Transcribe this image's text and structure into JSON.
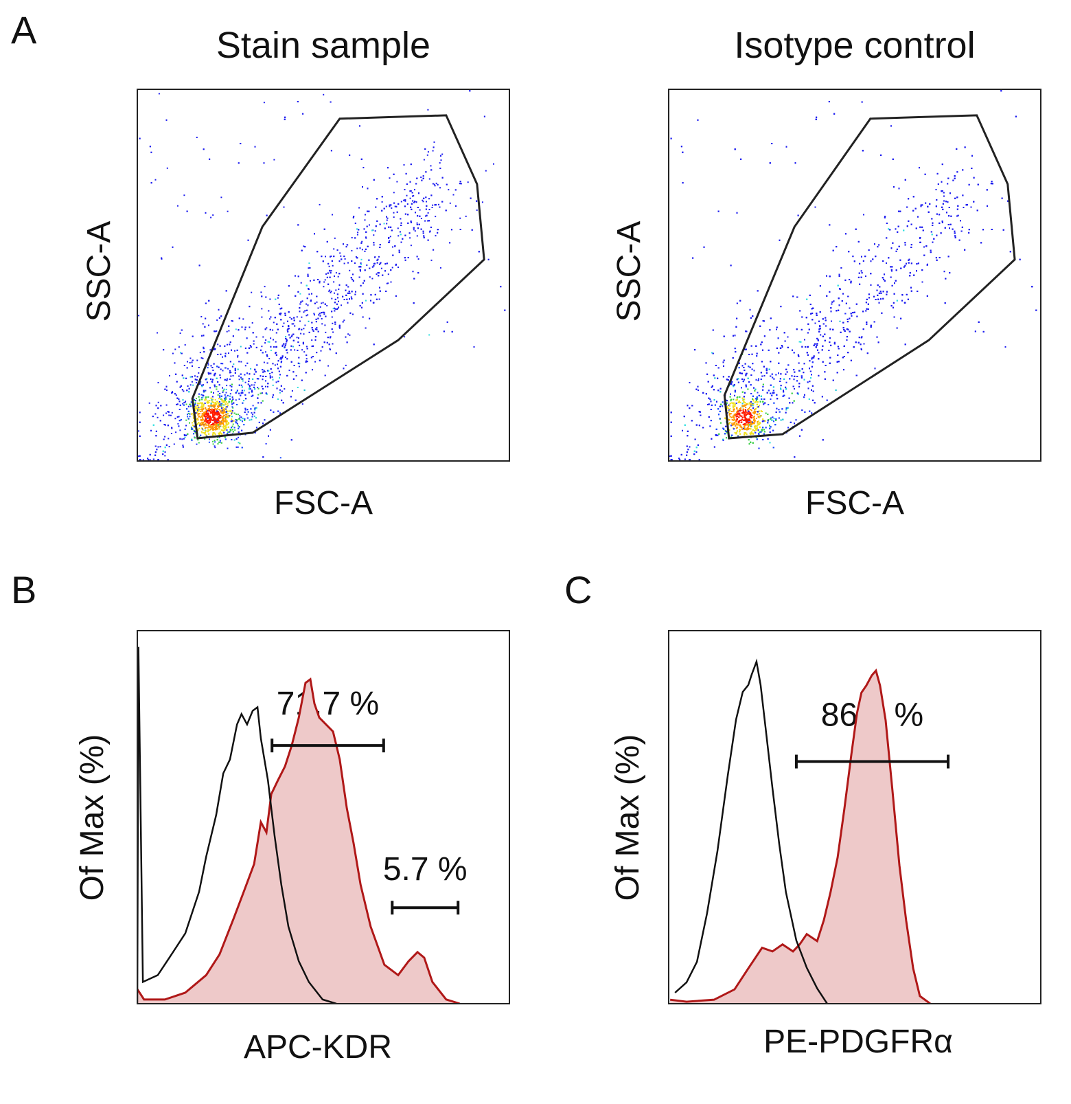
{
  "panels": {
    "a": "A",
    "b": "B",
    "c": "C"
  },
  "colors": {
    "fill": "#eec9c9",
    "stain_line": "#b01818",
    "control_line": "#111111",
    "gate": "#222222"
  },
  "chart_data": [
    {
      "type": "scatter",
      "panel": "A",
      "title": "Stain sample",
      "xlabel": "FSC-A",
      "ylabel": "SSC-A",
      "xlim": [
        0,
        100
      ],
      "ylim": [
        0,
        100
      ],
      "colormap": "density (blue-cyan-green-yellow-red)",
      "gate": [
        [
          54.4,
          92.1
        ],
        [
          83.0,
          93.0
        ],
        [
          91.3,
          74.5
        ],
        [
          93.2,
          54.2
        ],
        [
          70.1,
          32.5
        ],
        [
          31.0,
          7.6
        ],
        [
          16.2,
          6.1
        ],
        [
          14.8,
          16.8
        ],
        [
          33.6,
          63.0
        ]
      ]
    },
    {
      "type": "scatter",
      "panel": "A",
      "title": "Isotype control",
      "xlabel": "FSC-A",
      "ylabel": "SSC-A",
      "xlim": [
        0,
        100
      ],
      "ylim": [
        0,
        100
      ],
      "colormap": "density (blue-cyan-green-yellow-red)",
      "gate": [
        [
          54.2,
          92.1
        ],
        [
          82.8,
          93.0
        ],
        [
          91.1,
          74.5
        ],
        [
          93.0,
          54.2
        ],
        [
          69.9,
          32.5
        ],
        [
          30.6,
          7.2
        ],
        [
          16.2,
          6.1
        ],
        [
          15.0,
          17.7
        ],
        [
          33.8,
          63.0
        ]
      ]
    },
    {
      "type": "area",
      "panel": "B",
      "xlabel": "APC-KDR",
      "ylabel": "Of Max (%)",
      "xlim": [
        0,
        100
      ],
      "ylim": [
        0,
        115
      ],
      "control": [
        [
          0,
          0
        ],
        [
          0.3,
          110
        ],
        [
          1.5,
          6.7
        ],
        [
          5.5,
          8.8
        ],
        [
          9.2,
          15.2
        ],
        [
          12.9,
          21.7
        ],
        [
          16.6,
          34.5
        ],
        [
          18.5,
          45.3
        ],
        [
          21.2,
          58.2
        ],
        [
          23.1,
          71.0
        ],
        [
          24.9,
          75.3
        ],
        [
          26.8,
          86.1
        ],
        [
          28.0,
          89.3
        ],
        [
          29.5,
          86.1
        ],
        [
          31.0,
          90.3
        ],
        [
          32.3,
          91.4
        ],
        [
          33.2,
          81.8
        ],
        [
          35.1,
          68.9
        ],
        [
          36.9,
          51.7
        ],
        [
          38.7,
          36.7
        ],
        [
          40.6,
          23.8
        ],
        [
          43.4,
          13.1
        ],
        [
          46.1,
          6.7
        ],
        [
          49.8,
          1.3
        ],
        [
          53.5,
          0
        ]
      ],
      "stain": [
        [
          0,
          4.5
        ],
        [
          1.8,
          1.3
        ],
        [
          7.4,
          1.3
        ],
        [
          12.9,
          3.4
        ],
        [
          18.5,
          8.8
        ],
        [
          22.1,
          15.2
        ],
        [
          25.8,
          26.0
        ],
        [
          28.6,
          34.5
        ],
        [
          31.4,
          43.1
        ],
        [
          33.2,
          56.0
        ],
        [
          34.7,
          52.8
        ],
        [
          36.0,
          64.6
        ],
        [
          37.8,
          68.9
        ],
        [
          39.7,
          73.2
        ],
        [
          41.5,
          79.6
        ],
        [
          43.4,
          88.2
        ],
        [
          45.2,
          98.9
        ],
        [
          46.5,
          100
        ],
        [
          47.6,
          92.5
        ],
        [
          48.9,
          88.2
        ],
        [
          50.7,
          86.1
        ],
        [
          52.6,
          83.9
        ],
        [
          54.4,
          75.3
        ],
        [
          56.3,
          60.3
        ],
        [
          58.1,
          49.6
        ],
        [
          60.0,
          36.7
        ],
        [
          62.7,
          23.8
        ],
        [
          66.4,
          12.0
        ],
        [
          70.1,
          8.8
        ],
        [
          72.9,
          13.1
        ],
        [
          75.3,
          15.9
        ],
        [
          77.1,
          14.2
        ],
        [
          79.3,
          6.7
        ],
        [
          83.0,
          1.3
        ],
        [
          86.7,
          0
        ]
      ],
      "gates": [
        {
          "label": "71.7 %",
          "x": [
            36.2,
            66.2
          ],
          "y": 79.6
        },
        {
          "label": "5.7 %",
          "x": [
            68.5,
            86.2
          ],
          "y": 29.6
        }
      ]
    },
    {
      "type": "area",
      "panel": "C",
      "xlabel": "PE-PDGFRα",
      "ylabel": "Of Max (%)",
      "xlim": [
        0,
        100
      ],
      "ylim": [
        0,
        112
      ],
      "control": [
        [
          1.7,
          3.3
        ],
        [
          4.8,
          6.4
        ],
        [
          7.6,
          12.6
        ],
        [
          10.3,
          27.1
        ],
        [
          13.1,
          45.8
        ],
        [
          15.9,
          68.7
        ],
        [
          18.1,
          85.3
        ],
        [
          19.9,
          93.6
        ],
        [
          21.4,
          95.7
        ],
        [
          22.3,
          98.8
        ],
        [
          23.6,
          102.7
        ],
        [
          24.7,
          95.7
        ],
        [
          26.0,
          83.2
        ],
        [
          27.9,
          64.6
        ],
        [
          29.7,
          48.0
        ],
        [
          31.5,
          33.5
        ],
        [
          34.3,
          19.0
        ],
        [
          37.1,
          10.8
        ],
        [
          39.9,
          4.6
        ],
        [
          42.6,
          0
        ]
      ],
      "stain": [
        [
          0.4,
          1.2
        ],
        [
          4.8,
          0.6
        ],
        [
          12.2,
          1.2
        ],
        [
          17.7,
          4.3
        ],
        [
          21.4,
          10.6
        ],
        [
          25.1,
          16.8
        ],
        [
          27.9,
          15.7
        ],
        [
          30.6,
          17.8
        ],
        [
          33.4,
          15.7
        ],
        [
          35.2,
          17.8
        ],
        [
          37.1,
          20.9
        ],
        [
          39.9,
          18.8
        ],
        [
          41.7,
          25.1
        ],
        [
          43.5,
          33.5
        ],
        [
          45.4,
          43.9
        ],
        [
          47.2,
          58.4
        ],
        [
          49.1,
          74.9
        ],
        [
          50.6,
          87.2
        ],
        [
          51.8,
          93.4
        ],
        [
          53.1,
          95.5
        ],
        [
          54.6,
          98.6
        ],
        [
          55.7,
          100
        ],
        [
          56.8,
          95.5
        ],
        [
          58.3,
          85.1
        ],
        [
          60.1,
          64.4
        ],
        [
          62.0,
          41.6
        ],
        [
          63.8,
          25.1
        ],
        [
          65.7,
          10.6
        ],
        [
          67.5,
          2.3
        ],
        [
          70.3,
          0
        ]
      ],
      "gates": [
        {
          "label": "86.7 %",
          "x": [
            34.3,
            75.1
          ],
          "y": 72.7
        }
      ]
    }
  ]
}
